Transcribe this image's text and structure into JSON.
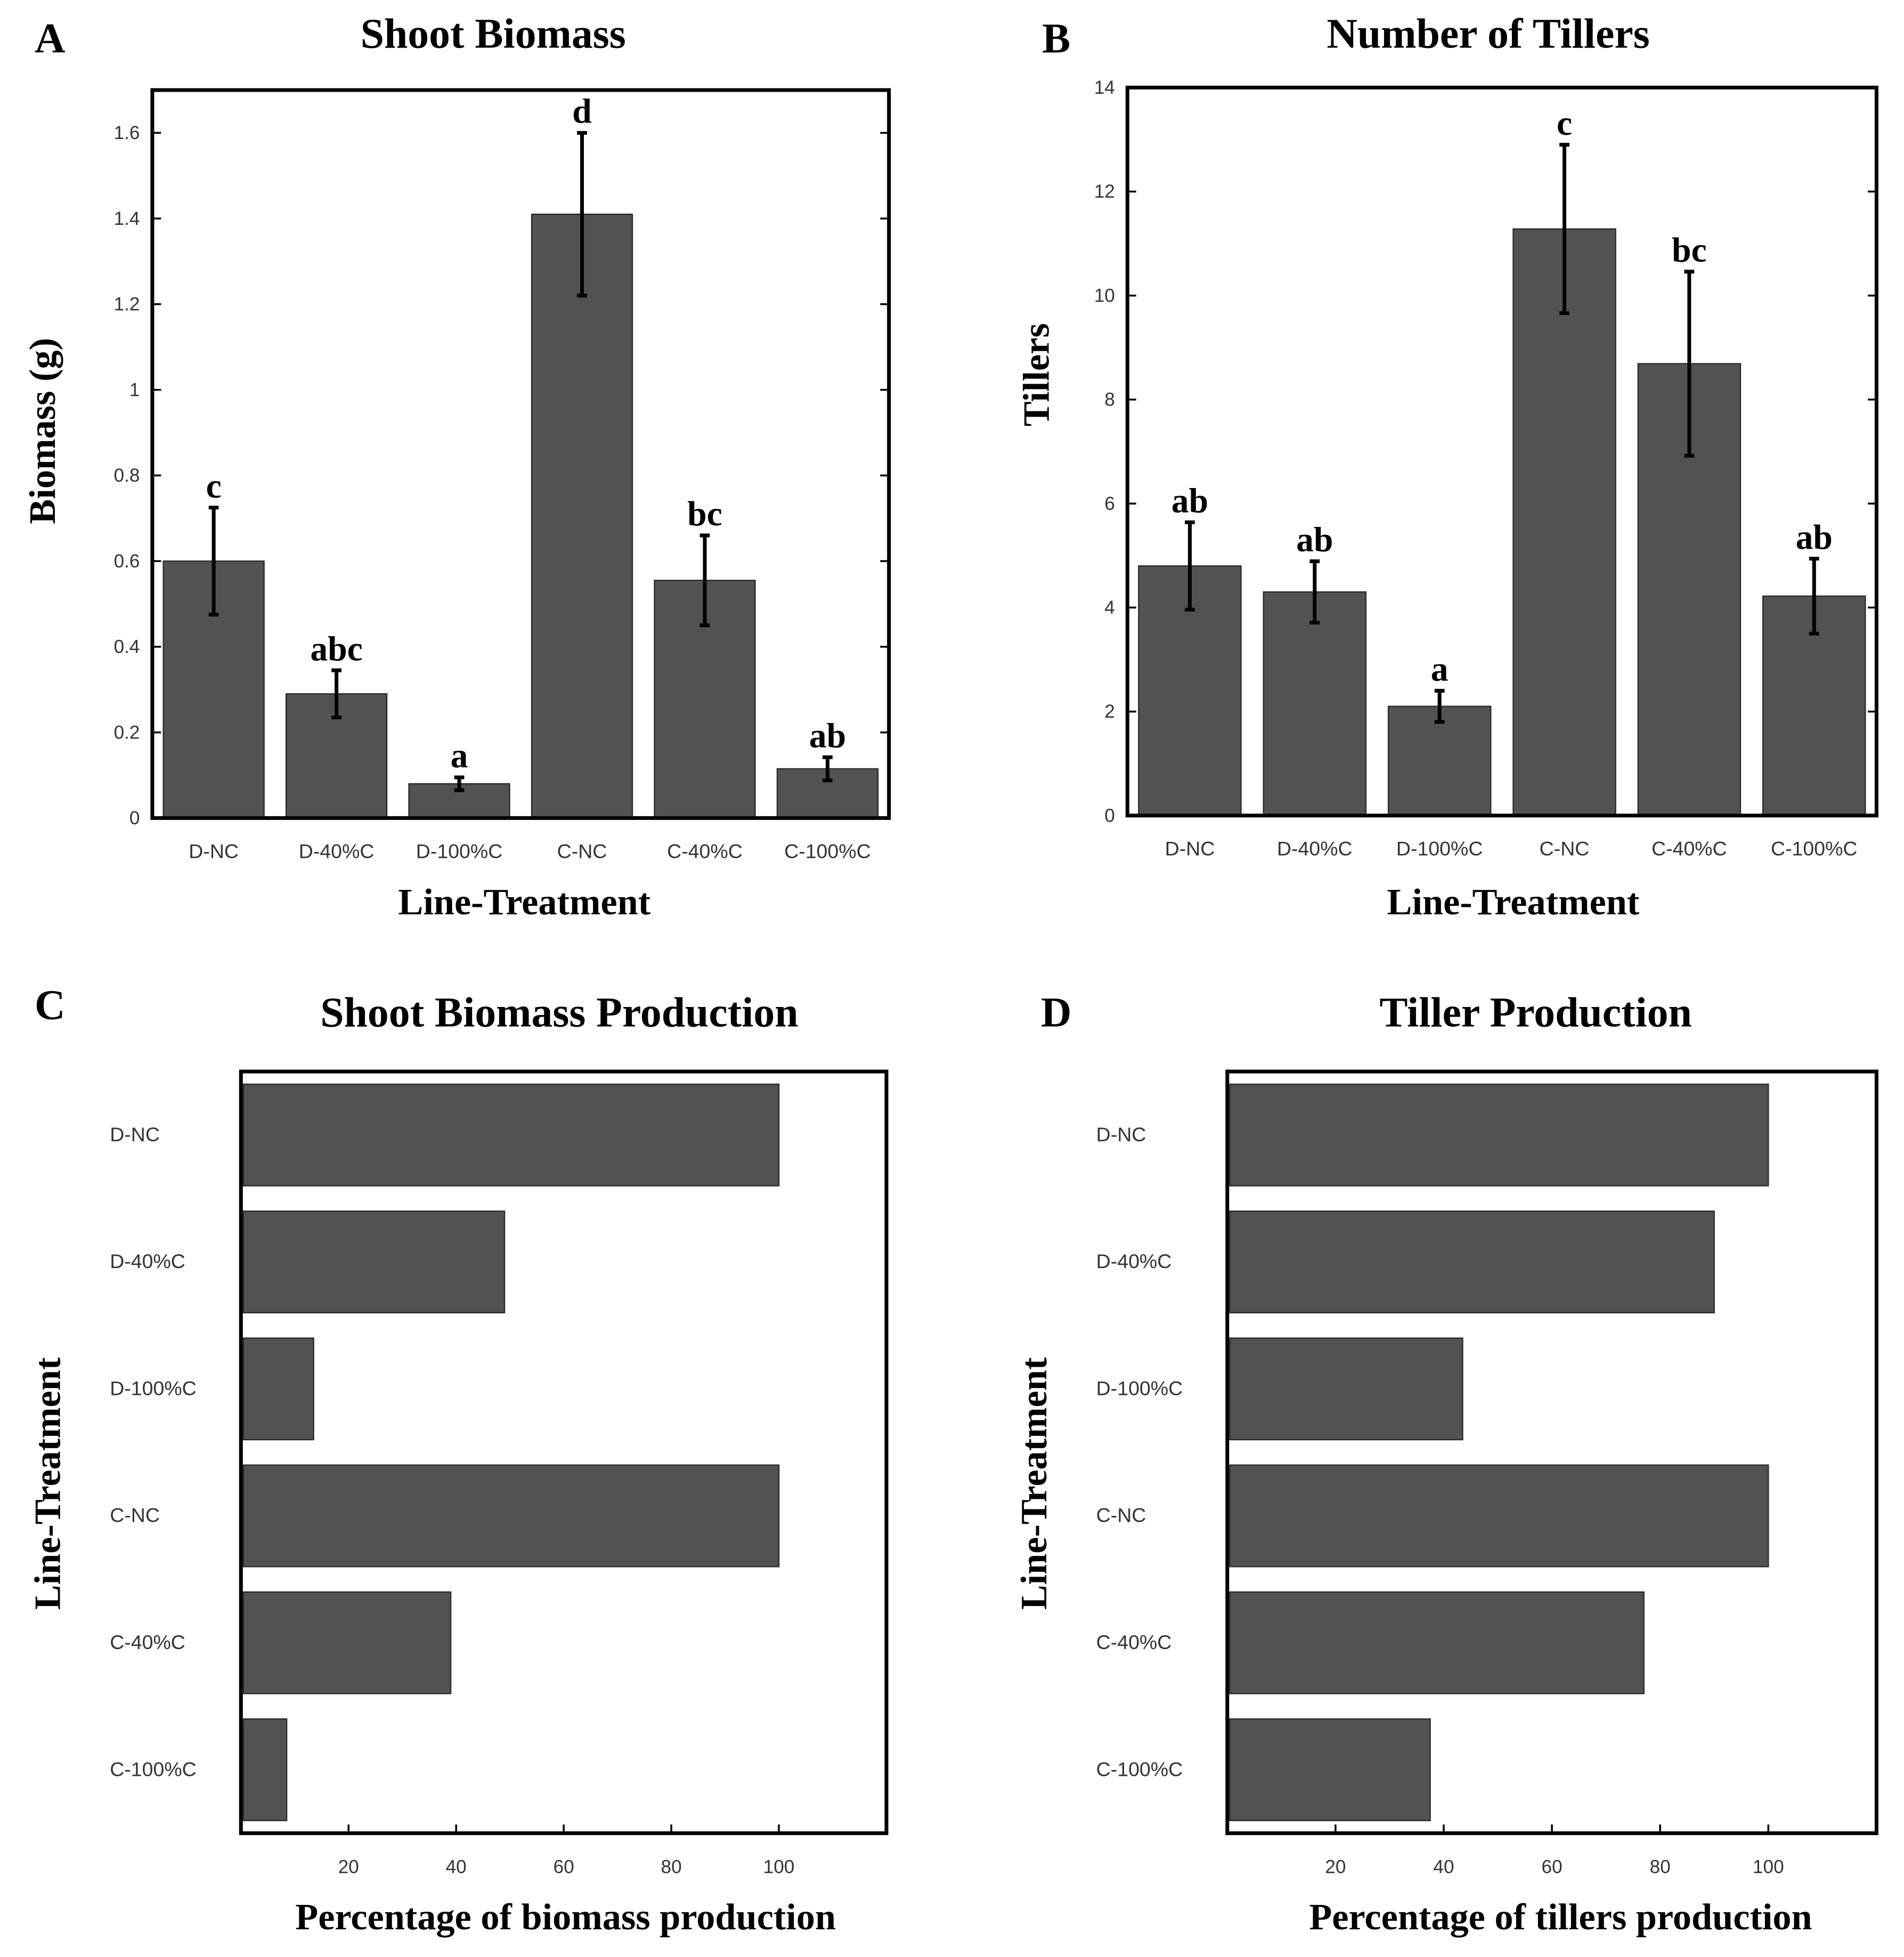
{
  "colors": {
    "bar": "#505254",
    "axis": "#000000"
  },
  "chart_data": [
    {
      "panel": "A",
      "type": "bar",
      "orientation": "vertical",
      "title": "Shoot Biomass",
      "xlabel": "Line-Treatment",
      "ylabel": "Biomass (g)",
      "categories": [
        "D-NC",
        "D-40%C",
        "D-100%C",
        "C-NC",
        "C-40%C",
        "C-100%C"
      ],
      "values": [
        0.6,
        0.29,
        0.08,
        1.41,
        0.555,
        0.115
      ],
      "errors": [
        0.125,
        0.055,
        0.015,
        0.19,
        0.105,
        0.027
      ],
      "significance": [
        "c",
        "abc",
        "a",
        "d",
        "bc",
        "ab"
      ],
      "ylim": [
        0,
        1.7
      ],
      "ticks": [
        0,
        0.2,
        0.4,
        0.6,
        0.8,
        1,
        1.2,
        1.4,
        1.6
      ],
      "tick_labels": [
        "0",
        "0.2",
        "0.4",
        "0.6",
        "0.8",
        "1",
        "1.2",
        "1.4",
        "1.6"
      ]
    },
    {
      "panel": "B",
      "type": "bar",
      "orientation": "vertical",
      "title": "Number of Tillers",
      "xlabel": "Line-Treatment",
      "ylabel": "Tillers",
      "categories": [
        "D-NC",
        "D-40%C",
        "D-100%C",
        "C-NC",
        "C-40%C",
        "C-100%C"
      ],
      "values": [
        4.8,
        4.3,
        2.1,
        11.28,
        8.69,
        4.22
      ],
      "errors": [
        0.84,
        0.59,
        0.3,
        1.62,
        1.77,
        0.72
      ],
      "significance": [
        "ab",
        "ab",
        "a",
        "c",
        "bc",
        "ab"
      ],
      "ylim": [
        0,
        14
      ],
      "ticks": [
        0,
        2,
        4,
        6,
        8,
        10,
        12,
        14
      ],
      "tick_labels": [
        "0",
        "2",
        "4",
        "6",
        "8",
        "10",
        "12",
        "14"
      ]
    },
    {
      "panel": "C",
      "type": "bar",
      "orientation": "horizontal",
      "title": "Shoot Biomass Production",
      "xlabel": "Percentage of biomass production",
      "ylabel": "Line-Treatment",
      "categories": [
        "D-NC",
        "D-40%C",
        "D-100%C",
        "C-NC",
        "C-40%C",
        "C-100%C"
      ],
      "values": [
        100,
        49,
        13.5,
        100,
        39,
        8.5
      ],
      "xlim": [
        0,
        120
      ],
      "ticks": [
        20,
        40,
        60,
        80,
        100
      ],
      "tick_labels": [
        "20",
        "40",
        "60",
        "80",
        "100"
      ]
    },
    {
      "panel": "D",
      "type": "bar",
      "orientation": "horizontal",
      "title": "Tiller Production",
      "xlabel": "Percentage of tillers production",
      "ylabel": "Line-Treatment",
      "categories": [
        "D-NC",
        "D-40%C",
        "D-100%C",
        "C-NC",
        "C-40%C",
        "C-100%C"
      ],
      "values": [
        100,
        90,
        43.5,
        100,
        77,
        37.5
      ],
      "xlim": [
        0,
        120
      ],
      "ticks": [
        20,
        40,
        60,
        80,
        100
      ],
      "tick_labels": [
        "20",
        "40",
        "60",
        "80",
        "100"
      ]
    }
  ]
}
